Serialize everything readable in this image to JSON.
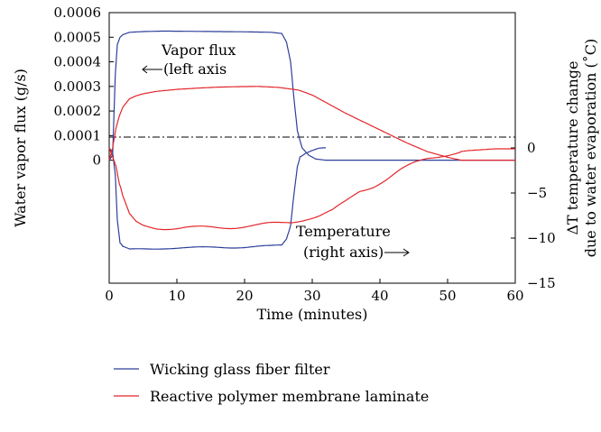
{
  "chart_data": {
    "type": "line",
    "xlabel": "Time (minutes)",
    "ylabel_left": "Water vapor flux (g/s)",
    "ylabel_right_line1": "ΔT temperature change",
    "ylabel_right_line2": "due to water evaporation (˚C)",
    "xlim": [
      0,
      60
    ],
    "ylim_left": [
      -0.0005,
      0.0006
    ],
    "ylim_right": [
      -15,
      15
    ],
    "x_ticks": [
      0,
      10,
      20,
      30,
      40,
      50,
      60
    ],
    "x_tick_labels": [
      "0",
      "10",
      "20",
      "30",
      "40",
      "50",
      "60"
    ],
    "y_left_ticks": [
      0,
      0.0001,
      0.0002,
      0.0003,
      0.0004,
      0.0005,
      0.0006
    ],
    "y_left_tick_labels": [
      "0",
      "0.0001",
      "0.0002",
      "0.0003",
      "0.0004",
      "0.0005",
      "0.0006"
    ],
    "y_right_ticks": [
      0,
      -5,
      -10,
      -15
    ],
    "y_right_tick_labels": [
      "0",
      "−5",
      "−10",
      "−15"
    ],
    "annotations": {
      "vapor_line1": "Vapor flux",
      "vapor_line2": "(left axis",
      "temp_line1": "Temperature",
      "temp_line2": "(right axis)"
    },
    "series": [
      {
        "name": "Wicking glass fiber filter",
        "color": "#2e3f9a",
        "flux": {
          "axis": "left",
          "x": [
            0,
            0.5,
            0.9,
            1.2,
            1.6,
            2,
            3,
            5,
            8,
            12,
            16,
            20,
            24,
            25.5,
            26.2,
            26.8,
            27.3,
            27.8,
            28.5,
            29.5,
            30.5,
            32,
            35,
            40,
            50,
            60
          ],
          "y": [
            0,
            2e-05,
            0.00035,
            0.00047,
            0.0005,
            0.00051,
            0.00052,
            0.000523,
            0.000525,
            0.000524,
            0.000523,
            0.000522,
            0.00052,
            0.000515,
            0.00048,
            0.0004,
            0.00025,
            0.00012,
            5e-05,
            2e-05,
            5e-06,
            0,
            0,
            0,
            0,
            0
          ]
        },
        "temperature": {
          "axis": "right",
          "x": [
            0,
            0.5,
            0.9,
            1.2,
            1.6,
            2,
            3,
            5,
            8,
            12,
            16,
            20,
            24,
            25.5,
            26.2,
            26.8,
            27.3,
            27.8,
            28.2,
            29,
            30,
            31,
            32
          ],
          "y": [
            0,
            -0.5,
            -3,
            -8,
            -10.5,
            -11,
            -11.3,
            -11.2,
            -11.1,
            -11.1,
            -11.0,
            -11.0,
            -10.9,
            -10.8,
            -10.2,
            -8.5,
            -5,
            -2,
            -1,
            -0.5,
            -0.2,
            0,
            0
          ]
        }
      },
      {
        "name": "Reactive polymer membrane laminate",
        "color": "#e3262b",
        "flux": {
          "axis": "left",
          "x": [
            0,
            0.5,
            1,
            1.5,
            2,
            3,
            4,
            5,
            7,
            10,
            13,
            16,
            19,
            22,
            25,
            28,
            30,
            32,
            35,
            38,
            41,
            44,
            47,
            50,
            52,
            53,
            55,
            60
          ],
          "y": [
            0,
            5e-05,
            0.00013,
            0.00018,
            0.000215,
            0.00025,
            0.000262,
            0.00027,
            0.00028,
            0.000288,
            0.000293,
            0.000297,
            0.000299,
            0.0003,
            0.000296,
            0.000285,
            0.000265,
            0.000235,
            0.00019,
            0.00015,
            0.00011,
            7e-05,
            3.5e-05,
            1.2e-05,
            0,
            0,
            0,
            0
          ]
        },
        "temperature": {
          "axis": "right",
          "x": [
            0,
            0.5,
            1,
            1.5,
            2,
            3,
            4,
            5,
            7,
            10,
            13,
            16,
            19,
            22,
            25,
            27,
            29,
            31,
            33,
            35,
            37,
            39,
            41,
            43,
            45,
            47,
            49,
            51,
            53,
            55,
            57,
            60
          ],
          "y": [
            0,
            -1,
            -2,
            -4,
            -5.5,
            -7.5,
            -8.3,
            -8.6,
            -8.8,
            -8.9,
            -8.9,
            -8.8,
            -8.7,
            -8.6,
            -8.4,
            -8.2,
            -7.8,
            -7.5,
            -7,
            -6,
            -4.8,
            -4.2,
            -3.4,
            -2.5,
            -1.8,
            -1.2,
            -0.8,
            -0.5,
            -0.3,
            -0.2,
            -0.1,
            -0.1
          ]
        }
      }
    ]
  }
}
